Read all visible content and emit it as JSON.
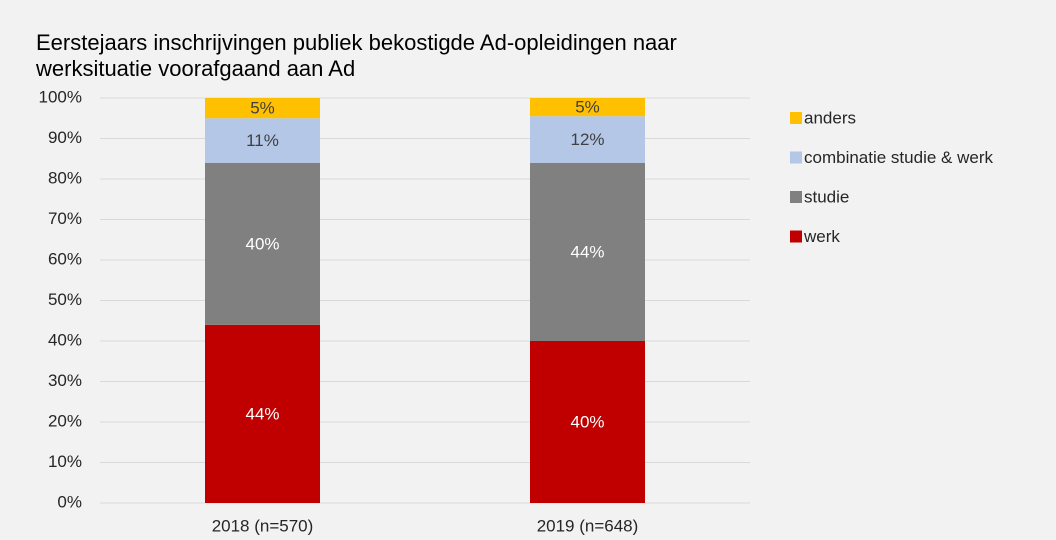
{
  "chart_data": {
    "type": "stacked-bar",
    "title": [
      "Eerstejaars inschrijvingen publiek bekostigde Ad-opleidingen naar",
      "werksituatie voorafgaand aan Ad"
    ],
    "categories": [
      "2018 (n=570)",
      "2019 (n=648)"
    ],
    "series": [
      {
        "name": "werk",
        "color": "#c00000",
        "label_color": "#ffffff",
        "values": [
          44,
          40
        ],
        "value_labels": [
          "44%",
          "40%"
        ]
      },
      {
        "name": "studie",
        "color": "#808080",
        "label_color": "#ffffff",
        "values": [
          40,
          44
        ],
        "value_labels": [
          "40%",
          "44%"
        ]
      },
      {
        "name": "combinatie studie & werk",
        "color": "#b4c7e7",
        "label_color": "#404040",
        "values": [
          11,
          11.5
        ],
        "value_labels": [
          "11%",
          "12%"
        ]
      },
      {
        "name": "anders",
        "color": "#ffc000",
        "label_color": "#404040",
        "values": [
          5,
          4.5
        ],
        "value_labels": [
          "5%",
          "5%"
        ]
      }
    ],
    "ylim": [
      0,
      100
    ],
    "yticks": [
      {
        "value": 0,
        "label": "0%"
      },
      {
        "value": 10,
        "label": "10%"
      },
      {
        "value": 20,
        "label": "20%"
      },
      {
        "value": 30,
        "label": "30%"
      },
      {
        "value": 40,
        "label": "40%"
      },
      {
        "value": 50,
        "label": "50%"
      },
      {
        "value": 60,
        "label": "60%"
      },
      {
        "value": 70,
        "label": "70%"
      },
      {
        "value": 80,
        "label": "80%"
      },
      {
        "value": 90,
        "label": "90%"
      },
      {
        "value": 100,
        "label": "100%"
      }
    ],
    "grid": true,
    "legend": "right"
  }
}
